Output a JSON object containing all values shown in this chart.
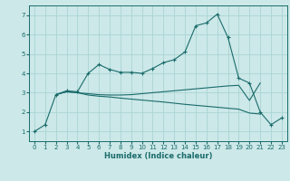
{
  "title": "",
  "xlabel": "Humidex (Indice chaleur)",
  "ylabel": "",
  "background_color": "#cce8e8",
  "grid_color": "#aad4d4",
  "line_color": "#1a6b6b",
  "x_ticks": [
    0,
    1,
    2,
    3,
    4,
    5,
    6,
    7,
    8,
    9,
    10,
    11,
    12,
    13,
    14,
    15,
    16,
    17,
    18,
    19,
    20,
    21,
    22,
    23
  ],
  "y_ticks": [
    1,
    2,
    3,
    4,
    5,
    6,
    7
  ],
  "xlim": [
    -0.5,
    23.5
  ],
  "ylim": [
    0.5,
    7.5
  ],
  "series_main": {
    "x": [
      0,
      1,
      2,
      3,
      4,
      5,
      6,
      7,
      8,
      9,
      10,
      11,
      12,
      13,
      14,
      15,
      16,
      17,
      18,
      19,
      20,
      21,
      22,
      23
    ],
    "y": [
      1.0,
      1.35,
      2.9,
      3.1,
      3.05,
      4.0,
      4.45,
      4.2,
      4.05,
      4.05,
      4.0,
      4.25,
      4.55,
      4.7,
      5.1,
      6.45,
      6.6,
      7.05,
      5.85,
      3.75,
      3.5,
      2.0,
      1.35,
      1.7
    ]
  },
  "series_upper": {
    "x": [
      2,
      3,
      4,
      5,
      6,
      7,
      8,
      9,
      10,
      11,
      12,
      13,
      14,
      15,
      16,
      17,
      18,
      19,
      20,
      21
    ],
    "y": [
      2.9,
      3.05,
      3.0,
      2.95,
      2.9,
      2.88,
      2.88,
      2.9,
      2.95,
      3.0,
      3.05,
      3.1,
      3.15,
      3.2,
      3.25,
      3.3,
      3.35,
      3.38,
      2.6,
      3.5
    ]
  },
  "series_lower": {
    "x": [
      2,
      3,
      4,
      5,
      6,
      7,
      8,
      9,
      10,
      11,
      12,
      13,
      14,
      15,
      16,
      17,
      18,
      19,
      20,
      21
    ],
    "y": [
      2.9,
      3.05,
      3.0,
      2.88,
      2.82,
      2.78,
      2.72,
      2.67,
      2.62,
      2.57,
      2.52,
      2.46,
      2.4,
      2.35,
      2.3,
      2.25,
      2.2,
      2.15,
      1.95,
      1.9
    ]
  },
  "figsize": [
    3.2,
    2.0
  ],
  "dpi": 100
}
